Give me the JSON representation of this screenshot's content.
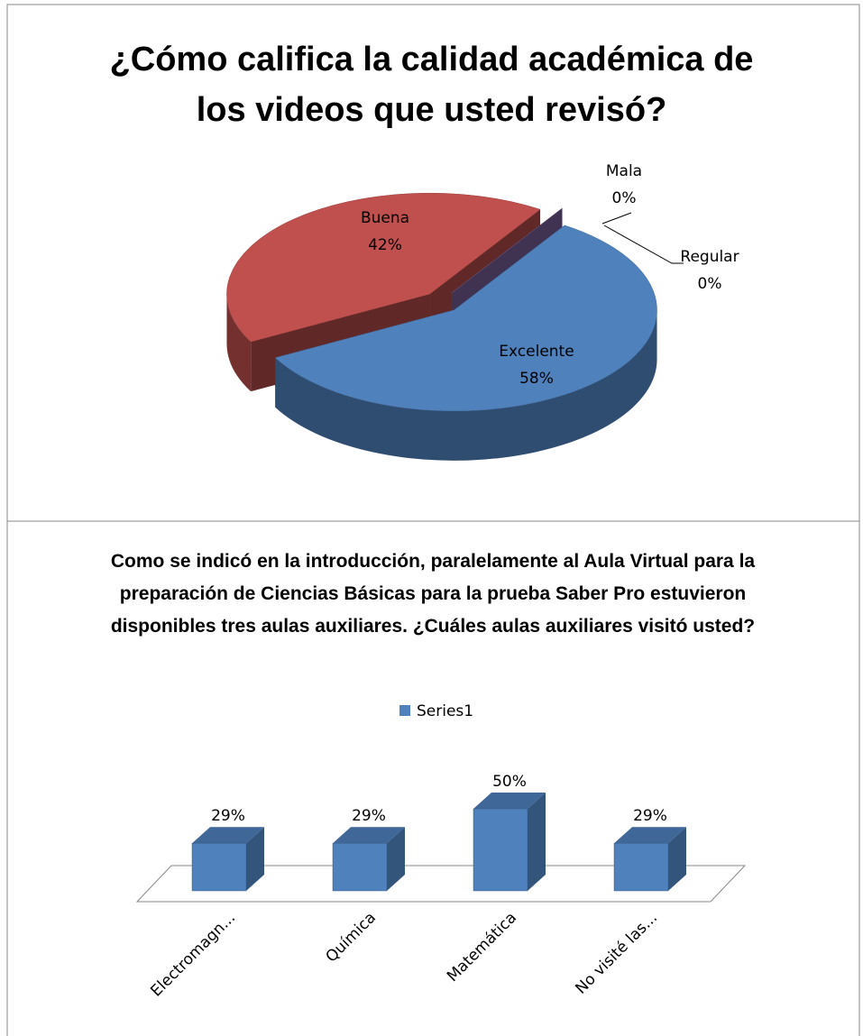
{
  "chart_data": [
    {
      "type": "pie",
      "title": "¿Cómo califica la calidad académica de los videos que usted revisó?",
      "categories": [
        "Excelente",
        "Buena",
        "Regular",
        "Mala"
      ],
      "values": [
        58,
        42,
        0,
        0
      ],
      "value_labels": [
        "58%",
        "42%",
        "0%",
        "0%"
      ],
      "colors": [
        "#4f81bd",
        "#c0504d",
        "#9bbb59",
        "#8064a2"
      ]
    },
    {
      "type": "bar",
      "title": "Como se indicó en la introducción, paralelamente al Aula Virtual para la preparación de Ciencias Básicas para la prueba Saber Pro estuvieron disponibles tres aulas auxiliares. ¿Cuáles aulas auxiliares visitó usted?",
      "categories": [
        "Electromagn...",
        "Química",
        "Matemática",
        "No visité las..."
      ],
      "series": [
        {
          "name": "Series1",
          "color": "#4f81bd",
          "values": [
            29,
            29,
            50,
            29
          ]
        }
      ],
      "value_labels": [
        "29%",
        "29%",
        "50%",
        "29%"
      ]
    }
  ]
}
